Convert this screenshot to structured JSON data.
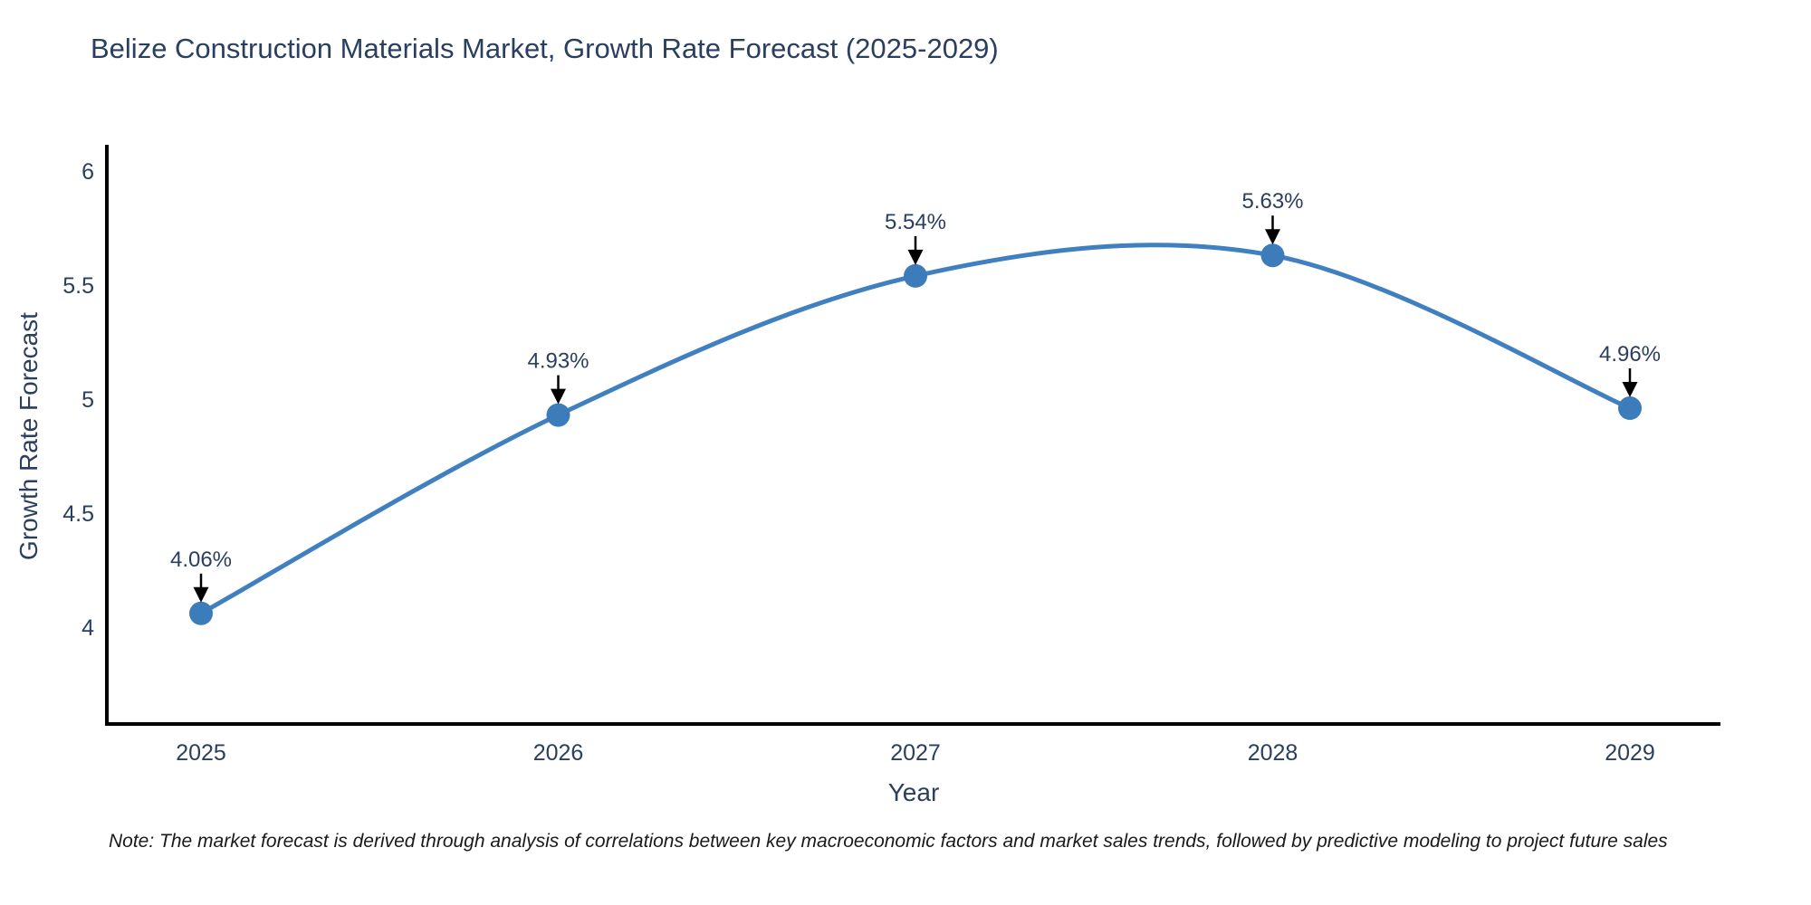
{
  "title": "Belize Construction Materials Market, Growth Rate Forecast (2025-2029)",
  "note": "Note: The market forecast is derived through analysis of correlations between key macroeconomic factors and market sales trends, followed by predictive modeling to project future sales",
  "chart_data": {
    "type": "line",
    "title": "Belize Construction Materials Market, Growth Rate Forecast (2025-2029)",
    "xlabel": "Year",
    "ylabel": "Growth Rate Forecast",
    "categories": [
      "2025",
      "2026",
      "2027",
      "2028",
      "2029"
    ],
    "series": [
      {
        "name": "Growth Rate Forecast",
        "values": [
          4.06,
          4.93,
          5.54,
          5.63,
          4.96
        ],
        "point_labels": [
          "4.06%",
          "4.93%",
          "5.54%",
          "5.63%",
          "4.96%"
        ]
      }
    ],
    "y_ticks": [
      4,
      4.5,
      5,
      5.5,
      6
    ],
    "y_tick_labels": [
      "4",
      "4.5",
      "5",
      "5.5",
      "6"
    ],
    "ylim": [
      3.575,
      6.115
    ],
    "grid": false,
    "legend": "none",
    "line_shape": "spline",
    "annotations_have_arrows": true,
    "colors": {
      "line": "#4080c0",
      "marker": "#3d7cba",
      "axis_line": "#000000",
      "text": "#2a3f5f",
      "annotation_text": "#2a3f5f",
      "annotation_arrow": "#000000",
      "note_text": "#1a1a1a",
      "background": "#ffffff"
    }
  }
}
